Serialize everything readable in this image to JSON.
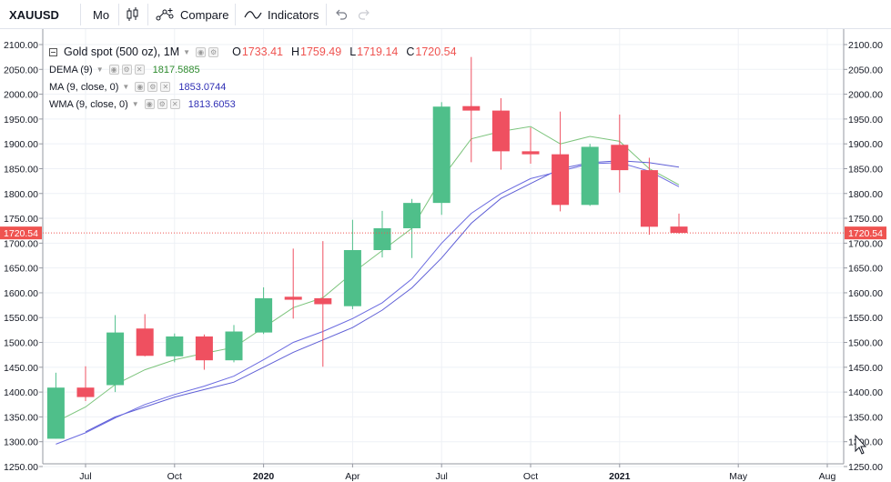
{
  "toolbar": {
    "symbol": "XAUUSD",
    "interval": "Mo",
    "chart_type_icon": "candles-icon",
    "compare_label": "Compare",
    "indicators_label": "Indicators",
    "undo_icon": "undo-icon",
    "redo_icon": "redo-icon"
  },
  "legend": {
    "title": "Gold spot (500 oz), 1M",
    "open_key": "O",
    "open": "1733.41",
    "high_key": "H",
    "high": "1759.49",
    "low_key": "L",
    "low": "1719.14",
    "close_key": "C",
    "close": "1720.54",
    "indicators": [
      {
        "name": "DEMA (9)",
        "value": "1817.5885",
        "color": "#4caf50"
      },
      {
        "name": "MA (9, close, 0)",
        "value": "1853.0744",
        "color": "#2f2fb5"
      },
      {
        "name": "WMA (9, close, 0)",
        "value": "1813.6053",
        "color": "#2f2fb5"
      }
    ]
  },
  "price_axis": {
    "labels": [
      "2100.00",
      "2050.00",
      "2000.00",
      "1950.00",
      "1900.00",
      "1850.00",
      "1800.00",
      "1750.00",
      "1700.00",
      "1650.00",
      "1600.00",
      "1550.00",
      "1500.00",
      "1450.00",
      "1400.00",
      "1350.00",
      "1300.00",
      "1250.00"
    ],
    "last_price": "1720.54"
  },
  "time_axis": {
    "labels": [
      "Jul",
      "Oct",
      "2020",
      "Apr",
      "Jul",
      "Oct",
      "2021",
      "May",
      "Aug"
    ]
  },
  "colors": {
    "up": "#4fbf8a",
    "down": "#ef5060",
    "grid": "#eef1f6",
    "dema": "#7cc47c",
    "ma": "#5f5fd6",
    "wma": "#6a6ae0",
    "last_price_line": "#ef5350"
  },
  "chart_data": {
    "type": "candlestick",
    "title": "Gold spot (500 oz), 1M",
    "ylim": [
      1250,
      2100
    ],
    "candles": [
      {
        "date": "2019-06",
        "open": 1306,
        "high": 1439,
        "low": 1306,
        "close": 1409
      },
      {
        "date": "2019-07",
        "open": 1409,
        "high": 1452,
        "low": 1382,
        "close": 1390
      },
      {
        "date": "2019-08",
        "open": 1414,
        "high": 1555,
        "low": 1400,
        "close": 1520
      },
      {
        "date": "2019-09",
        "open": 1528,
        "high": 1557,
        "low": 1472,
        "close": 1473
      },
      {
        "date": "2019-10",
        "open": 1472,
        "high": 1518,
        "low": 1460,
        "close": 1512
      },
      {
        "date": "2019-11",
        "open": 1512,
        "high": 1516,
        "low": 1445,
        "close": 1464
      },
      {
        "date": "2019-12",
        "open": 1464,
        "high": 1535,
        "low": 1460,
        "close": 1522
      },
      {
        "date": "2020-01",
        "open": 1520,
        "high": 1611,
        "low": 1517,
        "close": 1589
      },
      {
        "date": "2020-02",
        "open": 1592,
        "high": 1689,
        "low": 1548,
        "close": 1586
      },
      {
        "date": "2020-03",
        "open": 1589,
        "high": 1704,
        "low": 1451,
        "close": 1577
      },
      {
        "date": "2020-04",
        "open": 1573,
        "high": 1747,
        "low": 1567,
        "close": 1686
      },
      {
        "date": "2020-05",
        "open": 1686,
        "high": 1765,
        "low": 1671,
        "close": 1730
      },
      {
        "date": "2020-06",
        "open": 1730,
        "high": 1789,
        "low": 1670,
        "close": 1781
      },
      {
        "date": "2020-07",
        "open": 1781,
        "high": 1984,
        "low": 1757,
        "close": 1975
      },
      {
        "date": "2020-08",
        "open": 1976,
        "high": 2075,
        "low": 1863,
        "close": 1967
      },
      {
        "date": "2020-09",
        "open": 1967,
        "high": 1992,
        "low": 1848,
        "close": 1885
      },
      {
        "date": "2020-10",
        "open": 1885,
        "high": 1933,
        "low": 1860,
        "close": 1879
      },
      {
        "date": "2020-11",
        "open": 1879,
        "high": 1965,
        "low": 1764,
        "close": 1777
      },
      {
        "date": "2020-12",
        "open": 1777,
        "high": 1900,
        "low": 1775,
        "close": 1894
      },
      {
        "date": "2021-01",
        "open": 1898,
        "high": 1959,
        "low": 1802,
        "close": 1847
      },
      {
        "date": "2021-02",
        "open": 1847,
        "high": 1872,
        "low": 1717,
        "close": 1733
      },
      {
        "date": "2021-03",
        "open": 1733.41,
        "high": 1759.49,
        "low": 1719.14,
        "close": 1720.54
      }
    ],
    "series": [
      {
        "name": "DEMA (9)",
        "values": [
          1340,
          1370,
          1415,
          1445,
          1465,
          1478,
          1490,
          1530,
          1570,
          1590,
          1640,
          1685,
          1730,
          1830,
          1910,
          1925,
          1935,
          1900,
          1915,
          1905,
          1850,
          1817.59
        ]
      },
      {
        "name": "MA (9, close, 0)",
        "values": [
          null,
          1320,
          1350,
          1370,
          1390,
          1405,
          1420,
          1450,
          1480,
          1505,
          1530,
          1565,
          1610,
          1670,
          1740,
          1790,
          1820,
          1850,
          1862,
          1866,
          1862,
          1853.07
        ]
      },
      {
        "name": "WMA (9, close, 0)",
        "values": [
          1295,
          1318,
          1348,
          1375,
          1395,
          1412,
          1432,
          1465,
          1500,
          1522,
          1548,
          1580,
          1628,
          1700,
          1760,
          1800,
          1830,
          1845,
          1860,
          1862,
          1845,
          1813.61
        ]
      }
    ],
    "x_ticks": [
      {
        "label": "Jul",
        "date": "2019-07"
      },
      {
        "label": "Oct",
        "date": "2019-10"
      },
      {
        "label": "2020",
        "date": "2020-01"
      },
      {
        "label": "Apr",
        "date": "2020-04"
      },
      {
        "label": "Jul",
        "date": "2020-07"
      },
      {
        "label": "Oct",
        "date": "2020-10"
      },
      {
        "label": "2021",
        "date": "2021-01"
      },
      {
        "label": "May",
        "date": "2021-05"
      },
      {
        "label": "Aug",
        "date": "2021-08"
      }
    ]
  }
}
